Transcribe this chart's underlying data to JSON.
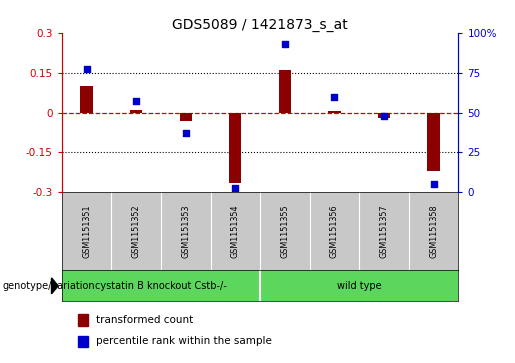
{
  "title": "GDS5089 / 1421873_s_at",
  "samples": [
    "GSM1151351",
    "GSM1151352",
    "GSM1151353",
    "GSM1151354",
    "GSM1151355",
    "GSM1151356",
    "GSM1151357",
    "GSM1151358"
  ],
  "transformed_count": [
    0.1,
    0.01,
    -0.03,
    -0.265,
    0.16,
    0.005,
    -0.02,
    -0.22
  ],
  "percentile_rank": [
    77,
    57,
    37,
    3,
    93,
    60,
    48,
    5
  ],
  "ylim_left": [
    -0.3,
    0.3
  ],
  "ylim_right": [
    0,
    100
  ],
  "yticks_left": [
    -0.3,
    -0.15,
    0.0,
    0.15,
    0.3
  ],
  "yticks_right": [
    0,
    25,
    50,
    75,
    100
  ],
  "ytick_labels_left": [
    "-0.3",
    "-0.15",
    "0",
    "0.15",
    "0.3"
  ],
  "ytick_labels_right": [
    "0",
    "25",
    "50",
    "75",
    "100%"
  ],
  "hlines": [
    0.15,
    -0.15
  ],
  "bar_color": "#8B0000",
  "dot_color": "#0000CD",
  "genotype_labels": [
    "cystatin B knockout Cstb-/-",
    "wild type"
  ],
  "genotype_color": "#5CD65C",
  "sample_bg_color": "#C8C8C8",
  "legend_red_label": "transformed count",
  "legend_blue_label": "percentile rank within the sample",
  "axis_left_color": "#CC0000",
  "axis_right_color": "#0000CC",
  "bar_width": 0.25
}
